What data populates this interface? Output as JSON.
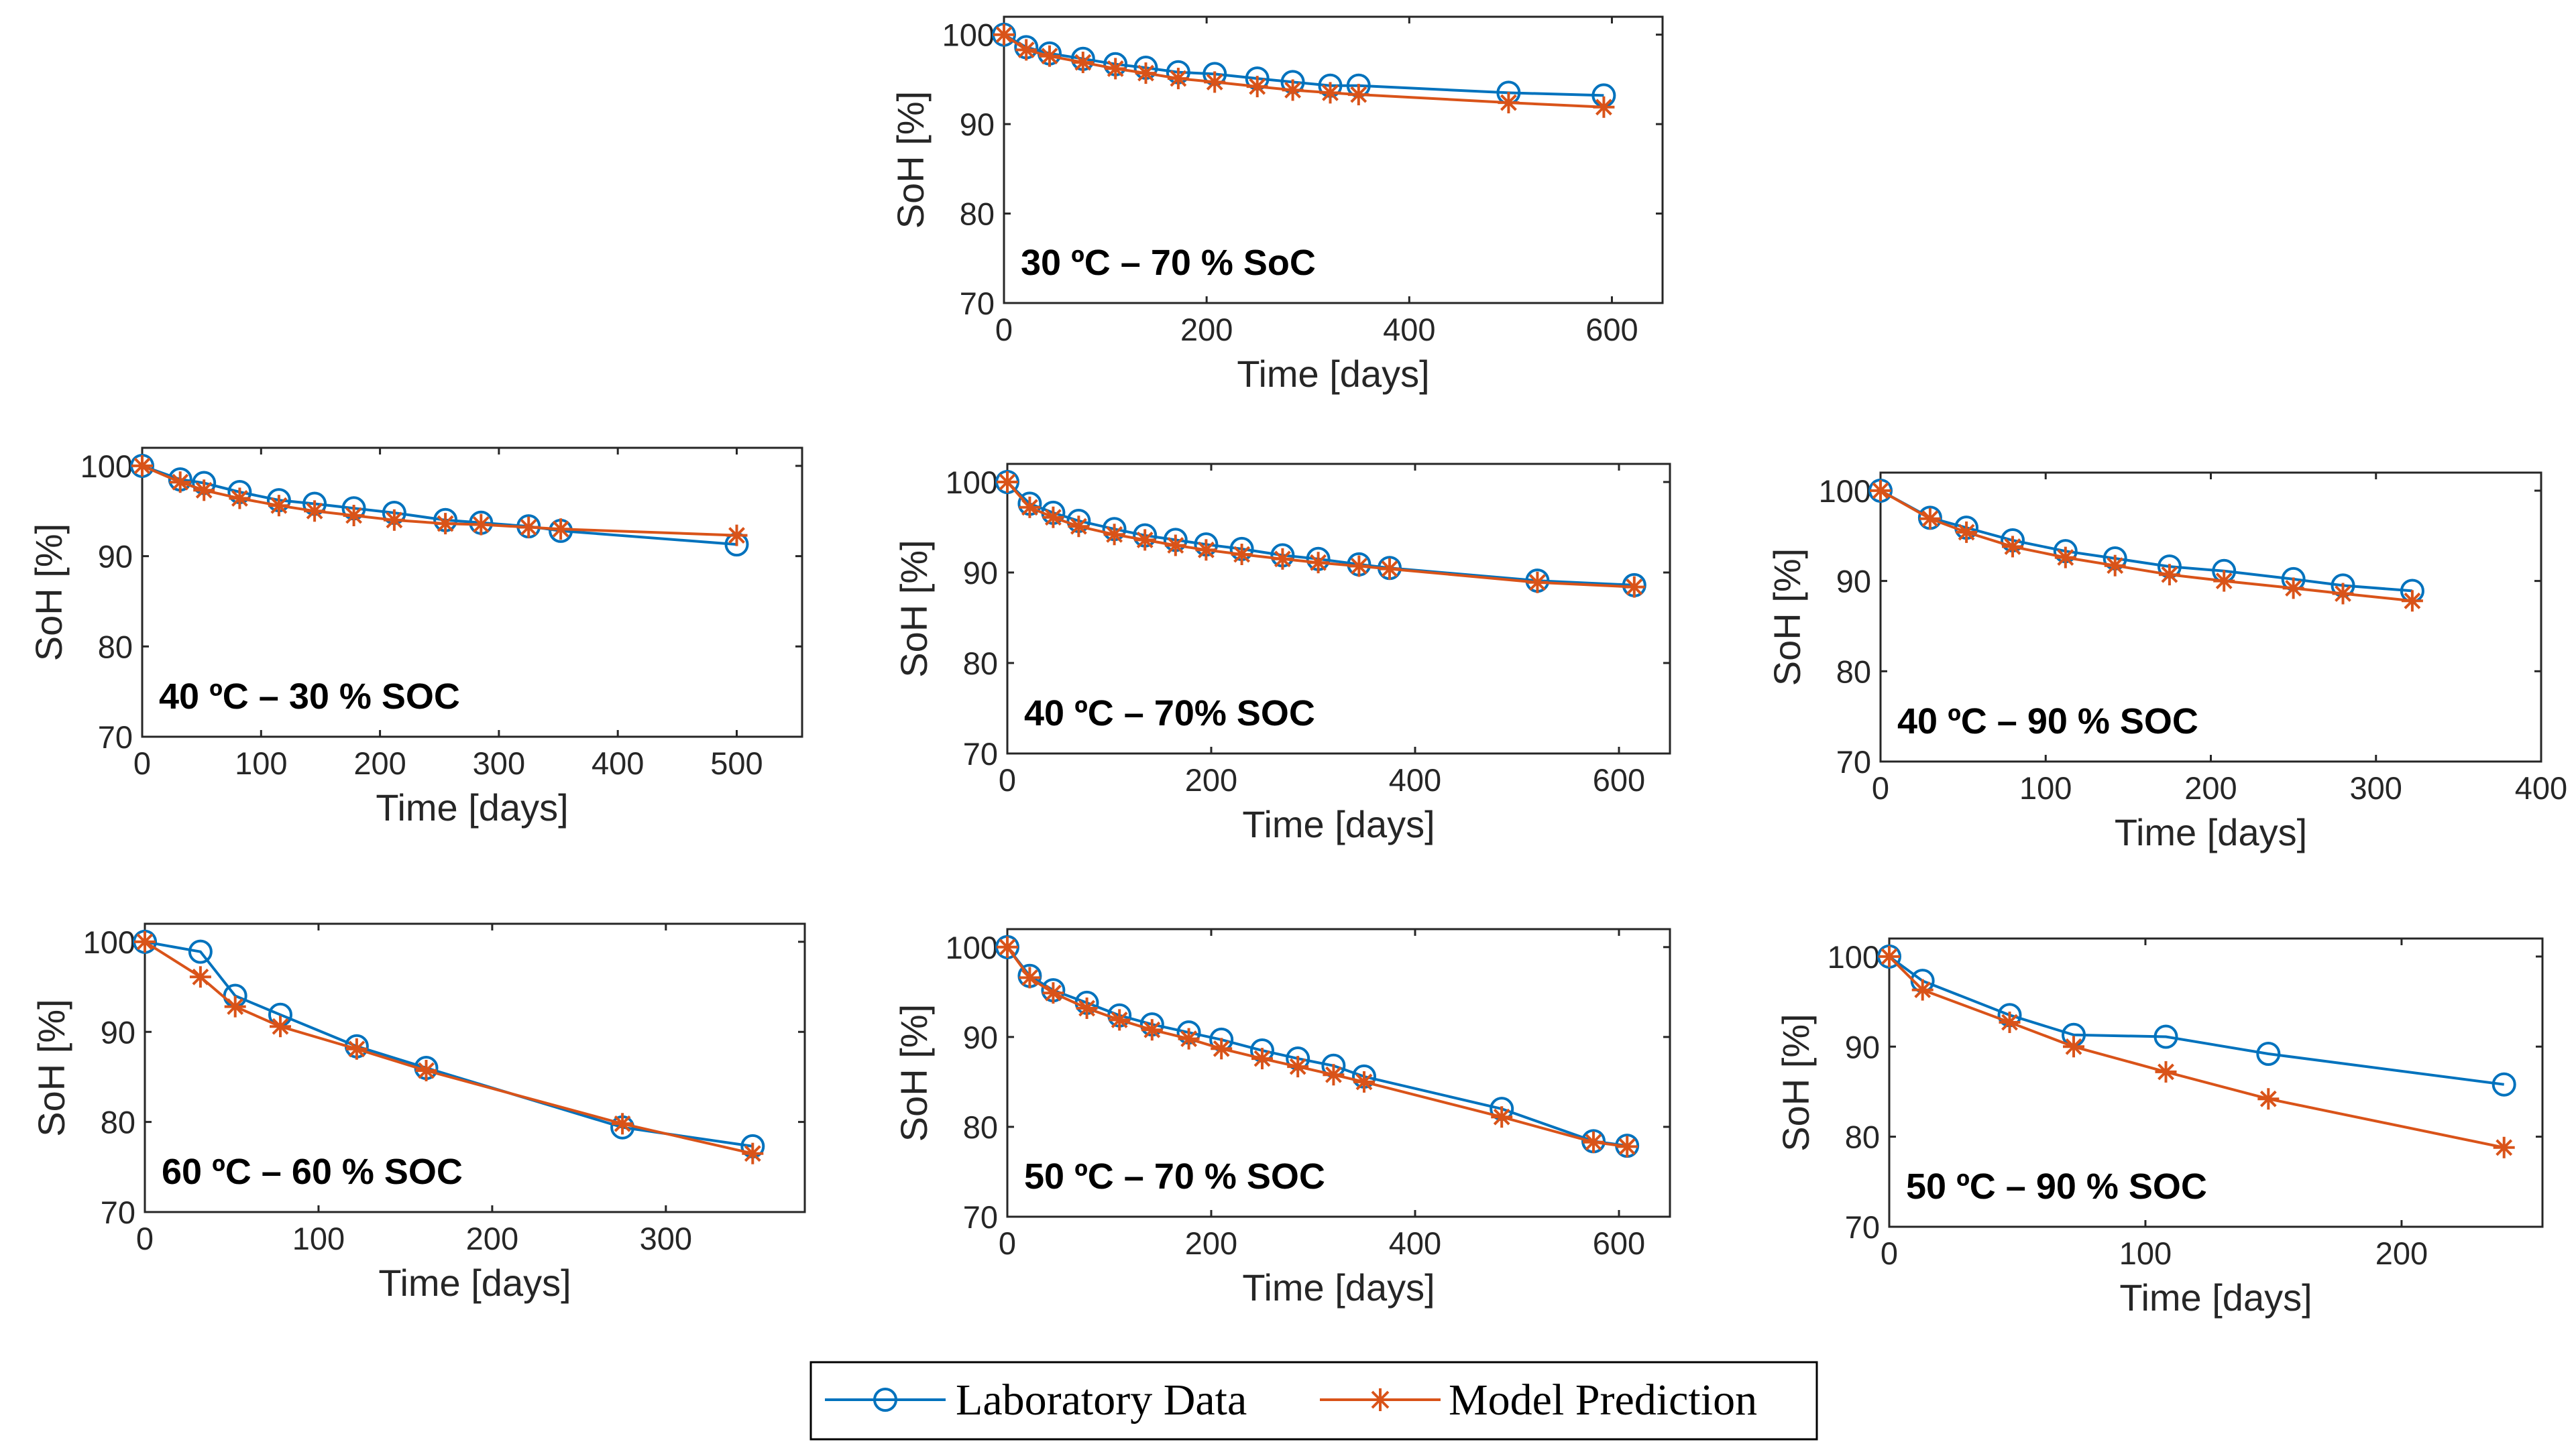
{
  "colors": {
    "lab": "#0072BD",
    "model": "#D95319",
    "axis": "#262626"
  },
  "legend": {
    "lab_label": "Laboratory Data",
    "model_label": "Model Prediction"
  },
  "chart_data": [
    {
      "id": "p30_70",
      "type": "line",
      "title": "",
      "annotation": "30 ºC  –  70 % SoC",
      "xlabel": "Time [days]",
      "ylabel": "SoH [%]",
      "xlim": [
        0,
        650
      ],
      "ylim": [
        70,
        102
      ],
      "xticks": [
        "0",
        "200",
        "400",
        "600"
      ],
      "xtickvals": [
        0,
        200,
        400,
        600
      ],
      "yticks": [
        "70",
        "80",
        "90",
        "100"
      ],
      "ytickvals": [
        70,
        80,
        90,
        100
      ],
      "series": [
        {
          "name": "Laboratory Data",
          "x": [
            0,
            22,
            45,
            78,
            110,
            140,
            172,
            208,
            250,
            285,
            322,
            350,
            498,
            592
          ],
          "y": [
            100,
            98.6,
            97.9,
            97.3,
            96.7,
            96.3,
            95.8,
            95.6,
            95.1,
            94.7,
            94.3,
            94.3,
            93.5,
            93.2
          ]
        },
        {
          "name": "Model Prediction",
          "x": [
            0,
            22,
            45,
            78,
            110,
            140,
            172,
            208,
            250,
            285,
            322,
            350,
            498,
            592
          ],
          "y": [
            100,
            98.3,
            97.6,
            96.9,
            96.2,
            95.7,
            95.1,
            94.7,
            94.2,
            93.8,
            93.5,
            93.3,
            92.4,
            91.9
          ]
        }
      ]
    },
    {
      "id": "p40_30",
      "type": "line",
      "title": "",
      "annotation": "40 ºC  –  30 % SOC",
      "xlabel": "Time [days]",
      "ylabel": "SoH [%]",
      "xlim": [
        0,
        555
      ],
      "ylim": [
        70,
        102
      ],
      "xticks": [
        "0",
        "100",
        "200",
        "300",
        "400",
        "500"
      ],
      "xtickvals": [
        0,
        100,
        200,
        300,
        400,
        500
      ],
      "yticks": [
        "70",
        "80",
        "90",
        "100"
      ],
      "ytickvals": [
        70,
        80,
        90,
        100
      ],
      "series": [
        {
          "name": "Laboratory Data",
          "x": [
            0,
            32,
            52,
            82,
            115,
            145,
            178,
            212,
            255,
            285,
            325,
            352,
            500
          ],
          "y": [
            100,
            98.5,
            98.1,
            97.1,
            96.2,
            95.8,
            95.3,
            94.8,
            94,
            93.7,
            93.3,
            92.8,
            91.3
          ]
        },
        {
          "name": "Model Prediction",
          "x": [
            0,
            32,
            52,
            82,
            115,
            145,
            178,
            212,
            255,
            285,
            325,
            352,
            500
          ],
          "y": [
            100,
            98.2,
            97.3,
            96.4,
            95.6,
            95,
            94.5,
            94,
            93.6,
            93.5,
            93.2,
            93,
            92.3
          ]
        }
      ]
    },
    {
      "id": "p40_70",
      "type": "line",
      "title": "",
      "annotation": "40 ºC  –  70%  SOC",
      "xlabel": "Time [days]",
      "ylabel": "SoH [%]",
      "xlim": [
        0,
        650
      ],
      "ylim": [
        70,
        102
      ],
      "xticks": [
        "0",
        "200",
        "400",
        "600"
      ],
      "xtickvals": [
        0,
        200,
        400,
        600
      ],
      "yticks": [
        "70",
        "80",
        "90",
        "100"
      ],
      "ytickvals": [
        70,
        80,
        90,
        100
      ],
      "series": [
        {
          "name": "Laboratory Data",
          "x": [
            0,
            22,
            45,
            70,
            105,
            135,
            165,
            195,
            230,
            270,
            305,
            345,
            375,
            520,
            615
          ],
          "y": [
            100,
            97.6,
            96.6,
            95.7,
            94.8,
            94.1,
            93.6,
            93.1,
            92.6,
            91.9,
            91.5,
            90.9,
            90.5,
            89.1,
            88.6
          ]
        },
        {
          "name": "Model Prediction",
          "x": [
            0,
            22,
            45,
            70,
            105,
            135,
            165,
            195,
            230,
            270,
            305,
            345,
            375,
            520,
            615
          ],
          "y": [
            100,
            97.2,
            96.1,
            95.1,
            94.2,
            93.6,
            93,
            92.5,
            92,
            91.5,
            91.1,
            90.7,
            90.4,
            88.9,
            88.4
          ]
        }
      ]
    },
    {
      "id": "p40_90",
      "type": "line",
      "title": "",
      "annotation": "40 ºC  –  90 % SOC",
      "xlabel": "Time [days]",
      "ylabel": "SoH [%]",
      "xlim": [
        0,
        400
      ],
      "ylim": [
        70,
        102
      ],
      "xticks": [
        "0",
        "100",
        "200",
        "300",
        "400"
      ],
      "xtickvals": [
        0,
        100,
        200,
        300,
        400
      ],
      "yticks": [
        "70",
        "80",
        "90",
        "100"
      ],
      "ytickvals": [
        70,
        80,
        90,
        100
      ],
      "series": [
        {
          "name": "Laboratory Data",
          "x": [
            0,
            30,
            52,
            80,
            112,
            142,
            175,
            208,
            250,
            280,
            322
          ],
          "y": [
            100,
            97,
            95.9,
            94.5,
            93.3,
            92.5,
            91.6,
            91.1,
            90.2,
            89.5,
            88.9
          ]
        },
        {
          "name": "Model Prediction",
          "x": [
            0,
            30,
            52,
            80,
            112,
            142,
            175,
            208,
            250,
            280,
            322
          ],
          "y": [
            100,
            96.9,
            95.4,
            93.8,
            92.6,
            91.7,
            90.7,
            90,
            89.2,
            88.6,
            87.8
          ]
        }
      ]
    },
    {
      "id": "p60_60",
      "type": "line",
      "title": "",
      "annotation": "60 ºC  –  60 % SOC",
      "xlabel": "Time [days]",
      "ylabel": "SoH [%]",
      "xlim": [
        0,
        380
      ],
      "ylim": [
        70,
        102
      ],
      "xticks": [
        "0",
        "100",
        "200",
        "300"
      ],
      "xtickvals": [
        0,
        100,
        200,
        300
      ],
      "yticks": [
        "70",
        "80",
        "90",
        "100"
      ],
      "ytickvals": [
        70,
        80,
        90,
        100
      ],
      "series": [
        {
          "name": "Laboratory Data",
          "x": [
            0,
            32,
            52,
            78,
            122,
            162,
            275,
            350
          ],
          "y": [
            100,
            98.9,
            94,
            91.9,
            88.4,
            86,
            79.4,
            77.3
          ]
        },
        {
          "name": "Model Prediction",
          "x": [
            0,
            32,
            52,
            78,
            122,
            162,
            275,
            350
          ],
          "y": [
            100,
            96.1,
            92.8,
            90.6,
            88.1,
            85.7,
            79.8,
            76.5
          ]
        }
      ]
    },
    {
      "id": "p50_70",
      "type": "line",
      "title": "",
      "annotation": "50 ºC  –  70 % SOC",
      "xlabel": "Time [days]",
      "ylabel": "SoH [%]",
      "xlim": [
        0,
        650
      ],
      "ylim": [
        70,
        102
      ],
      "xticks": [
        "0",
        "200",
        "400",
        "600"
      ],
      "xtickvals": [
        0,
        200,
        400,
        600
      ],
      "yticks": [
        "70",
        "80",
        "90",
        "100"
      ],
      "ytickvals": [
        70,
        80,
        90,
        100
      ],
      "series": [
        {
          "name": "Laboratory Data",
          "x": [
            0,
            22,
            45,
            78,
            110,
            142,
            178,
            210,
            250,
            285,
            320,
            350,
            485,
            575,
            608
          ],
          "y": [
            100,
            96.8,
            95.2,
            93.8,
            92.4,
            91.4,
            90.5,
            89.7,
            88.5,
            87.6,
            86.8,
            85.6,
            82,
            78.4,
            77.9
          ]
        },
        {
          "name": "Model Prediction",
          "x": [
            0,
            22,
            45,
            78,
            110,
            142,
            178,
            210,
            250,
            285,
            320,
            350,
            485,
            575,
            608
          ],
          "y": [
            100,
            96.6,
            94.9,
            93.2,
            91.9,
            90.8,
            89.8,
            88.7,
            87.6,
            86.7,
            85.8,
            85,
            81.1,
            78.3,
            77.8
          ]
        }
      ]
    },
    {
      "id": "p50_90",
      "type": "line",
      "title": "",
      "annotation": "50 ºC  –  90 % SOC",
      "xlabel": "Time [days]",
      "ylabel": "SoH [%]",
      "xlim": [
        0,
        255
      ],
      "ylim": [
        70,
        102
      ],
      "xticks": [
        "0",
        "100",
        "200"
      ],
      "xtickvals": [
        0,
        100,
        200
      ],
      "yticks": [
        "70",
        "80",
        "90",
        "100"
      ],
      "ytickvals": [
        70,
        80,
        90,
        100
      ],
      "series": [
        {
          "name": "Laboratory Data",
          "x": [
            0,
            13,
            47,
            72,
            108,
            148,
            240
          ],
          "y": [
            100,
            97.3,
            93.5,
            91.3,
            91.1,
            89.2,
            85.8
          ]
        },
        {
          "name": "Model Prediction",
          "x": [
            0,
            13,
            47,
            72,
            108,
            148,
            240
          ],
          "y": [
            100,
            96.3,
            92.7,
            90,
            87.2,
            84.2,
            78.8
          ]
        }
      ]
    }
  ]
}
